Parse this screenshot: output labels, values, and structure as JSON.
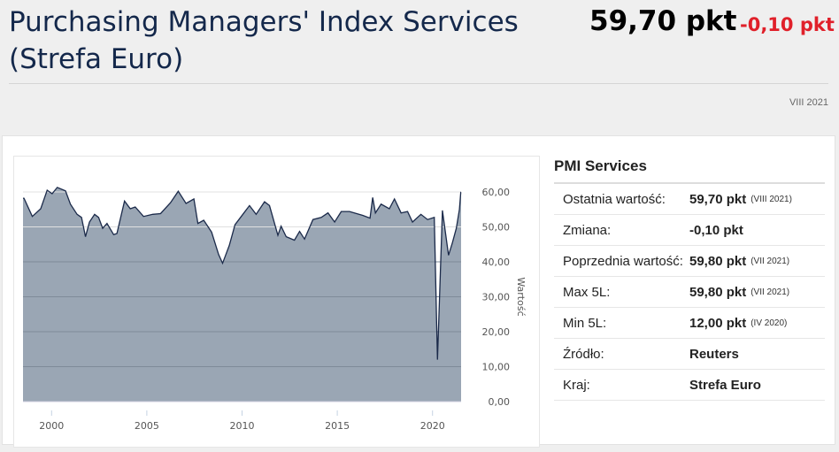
{
  "header": {
    "title": "Purchasing Managers' Index Services (Strefa Euro)",
    "value": "59,70 pkt",
    "change": "-0,10 pkt",
    "date": "VIII 2021"
  },
  "side": {
    "heading": "PMI Services",
    "rows": [
      {
        "label": "Ostatnia wartość:",
        "value": "59,70 pkt",
        "date": "(VIII 2021)"
      },
      {
        "label": "Zmiana:",
        "value": "-0,10 pkt",
        "date": ""
      },
      {
        "label": "Poprzednia wartość:",
        "value": "59,80 pkt",
        "date": "(VII 2021)"
      },
      {
        "label": "Max 5L:",
        "value": "59,80 pkt",
        "date": "(VII 2021)"
      },
      {
        "label": "Min 5L:",
        "value": "12,00 pkt",
        "date": "(IV 2020)"
      },
      {
        "label": "Źródło:",
        "value": "Reuters",
        "date": ""
      },
      {
        "label": "Kraj:",
        "value": "Strefa Euro",
        "date": ""
      }
    ]
  },
  "colors": {
    "fill": "#9aa6b4",
    "line": "#1b2a4a",
    "negative": "#e0202a"
  },
  "chart_data": {
    "type": "area",
    "ylabel": "Wartość",
    "ylim": [
      0,
      60
    ],
    "xlim": [
      1998.5,
      2021.5
    ],
    "yticks": [
      "0,00",
      "10,00",
      "20,00",
      "30,00",
      "40,00",
      "50,00",
      "60,00"
    ],
    "xticks": [
      "2000",
      "2005",
      "2010",
      "2015",
      "2020"
    ],
    "points": [
      [
        1998.55,
        58.2
      ],
      [
        1998.99,
        53.0
      ],
      [
        1999.43,
        55.2
      ],
      [
        1999.77,
        60.5
      ],
      [
        2000.03,
        59.5
      ],
      [
        2000.3,
        61.3
      ],
      [
        2000.73,
        60.3
      ],
      [
        2000.99,
        56.5
      ],
      [
        2001.34,
        53.6
      ],
      [
        2001.57,
        52.7
      ],
      [
        2001.78,
        47.2
      ],
      [
        2001.99,
        51.4
      ],
      [
        2002.26,
        53.6
      ],
      [
        2002.47,
        52.7
      ],
      [
        2002.68,
        49.6
      ],
      [
        2002.91,
        51.0
      ],
      [
        2003.26,
        47.8
      ],
      [
        2003.43,
        48.1
      ],
      [
        2003.83,
        57.4
      ],
      [
        2004.13,
        55.2
      ],
      [
        2004.39,
        55.7
      ],
      [
        2004.83,
        53.0
      ],
      [
        2005.31,
        53.6
      ],
      [
        2005.72,
        53.8
      ],
      [
        2006.24,
        56.9
      ],
      [
        2006.65,
        60.2
      ],
      [
        2007.06,
        56.7
      ],
      [
        2007.47,
        58.0
      ],
      [
        2007.68,
        51.0
      ],
      [
        2007.99,
        51.9
      ],
      [
        2008.4,
        48.5
      ],
      [
        2008.77,
        42.1
      ],
      [
        2008.98,
        39.6
      ],
      [
        2009.33,
        44.7
      ],
      [
        2009.63,
        50.6
      ],
      [
        2010.04,
        53.6
      ],
      [
        2010.39,
        56.1
      ],
      [
        2010.74,
        53.6
      ],
      [
        2011.18,
        57.2
      ],
      [
        2011.44,
        56.1
      ],
      [
        2011.88,
        47.6
      ],
      [
        2012.05,
        50.2
      ],
      [
        2012.32,
        47.2
      ],
      [
        2012.75,
        46.2
      ],
      [
        2013.02,
        48.7
      ],
      [
        2013.28,
        46.5
      ],
      [
        2013.72,
        52.1
      ],
      [
        2014.16,
        52.7
      ],
      [
        2014.51,
        54.0
      ],
      [
        2014.86,
        51.4
      ],
      [
        2015.21,
        54.4
      ],
      [
        2015.64,
        54.4
      ],
      [
        2016.34,
        53.3
      ],
      [
        2016.72,
        52.5
      ],
      [
        2016.86,
        58.4
      ],
      [
        2017.0,
        54.0
      ],
      [
        2017.3,
        56.5
      ],
      [
        2017.73,
        55.2
      ],
      [
        2018.0,
        58.0
      ],
      [
        2018.35,
        54.0
      ],
      [
        2018.69,
        54.4
      ],
      [
        2018.95,
        51.4
      ],
      [
        2019.39,
        53.6
      ],
      [
        2019.74,
        52.1
      ],
      [
        2020.09,
        52.7
      ],
      [
        2020.26,
        12.0
      ],
      [
        2020.52,
        54.7
      ],
      [
        2020.84,
        41.9
      ],
      [
        2021.04,
        45.4
      ],
      [
        2021.25,
        49.6
      ],
      [
        2021.41,
        55.0
      ],
      [
        2021.48,
        59.8
      ],
      [
        2021.5,
        59.7
      ]
    ]
  }
}
